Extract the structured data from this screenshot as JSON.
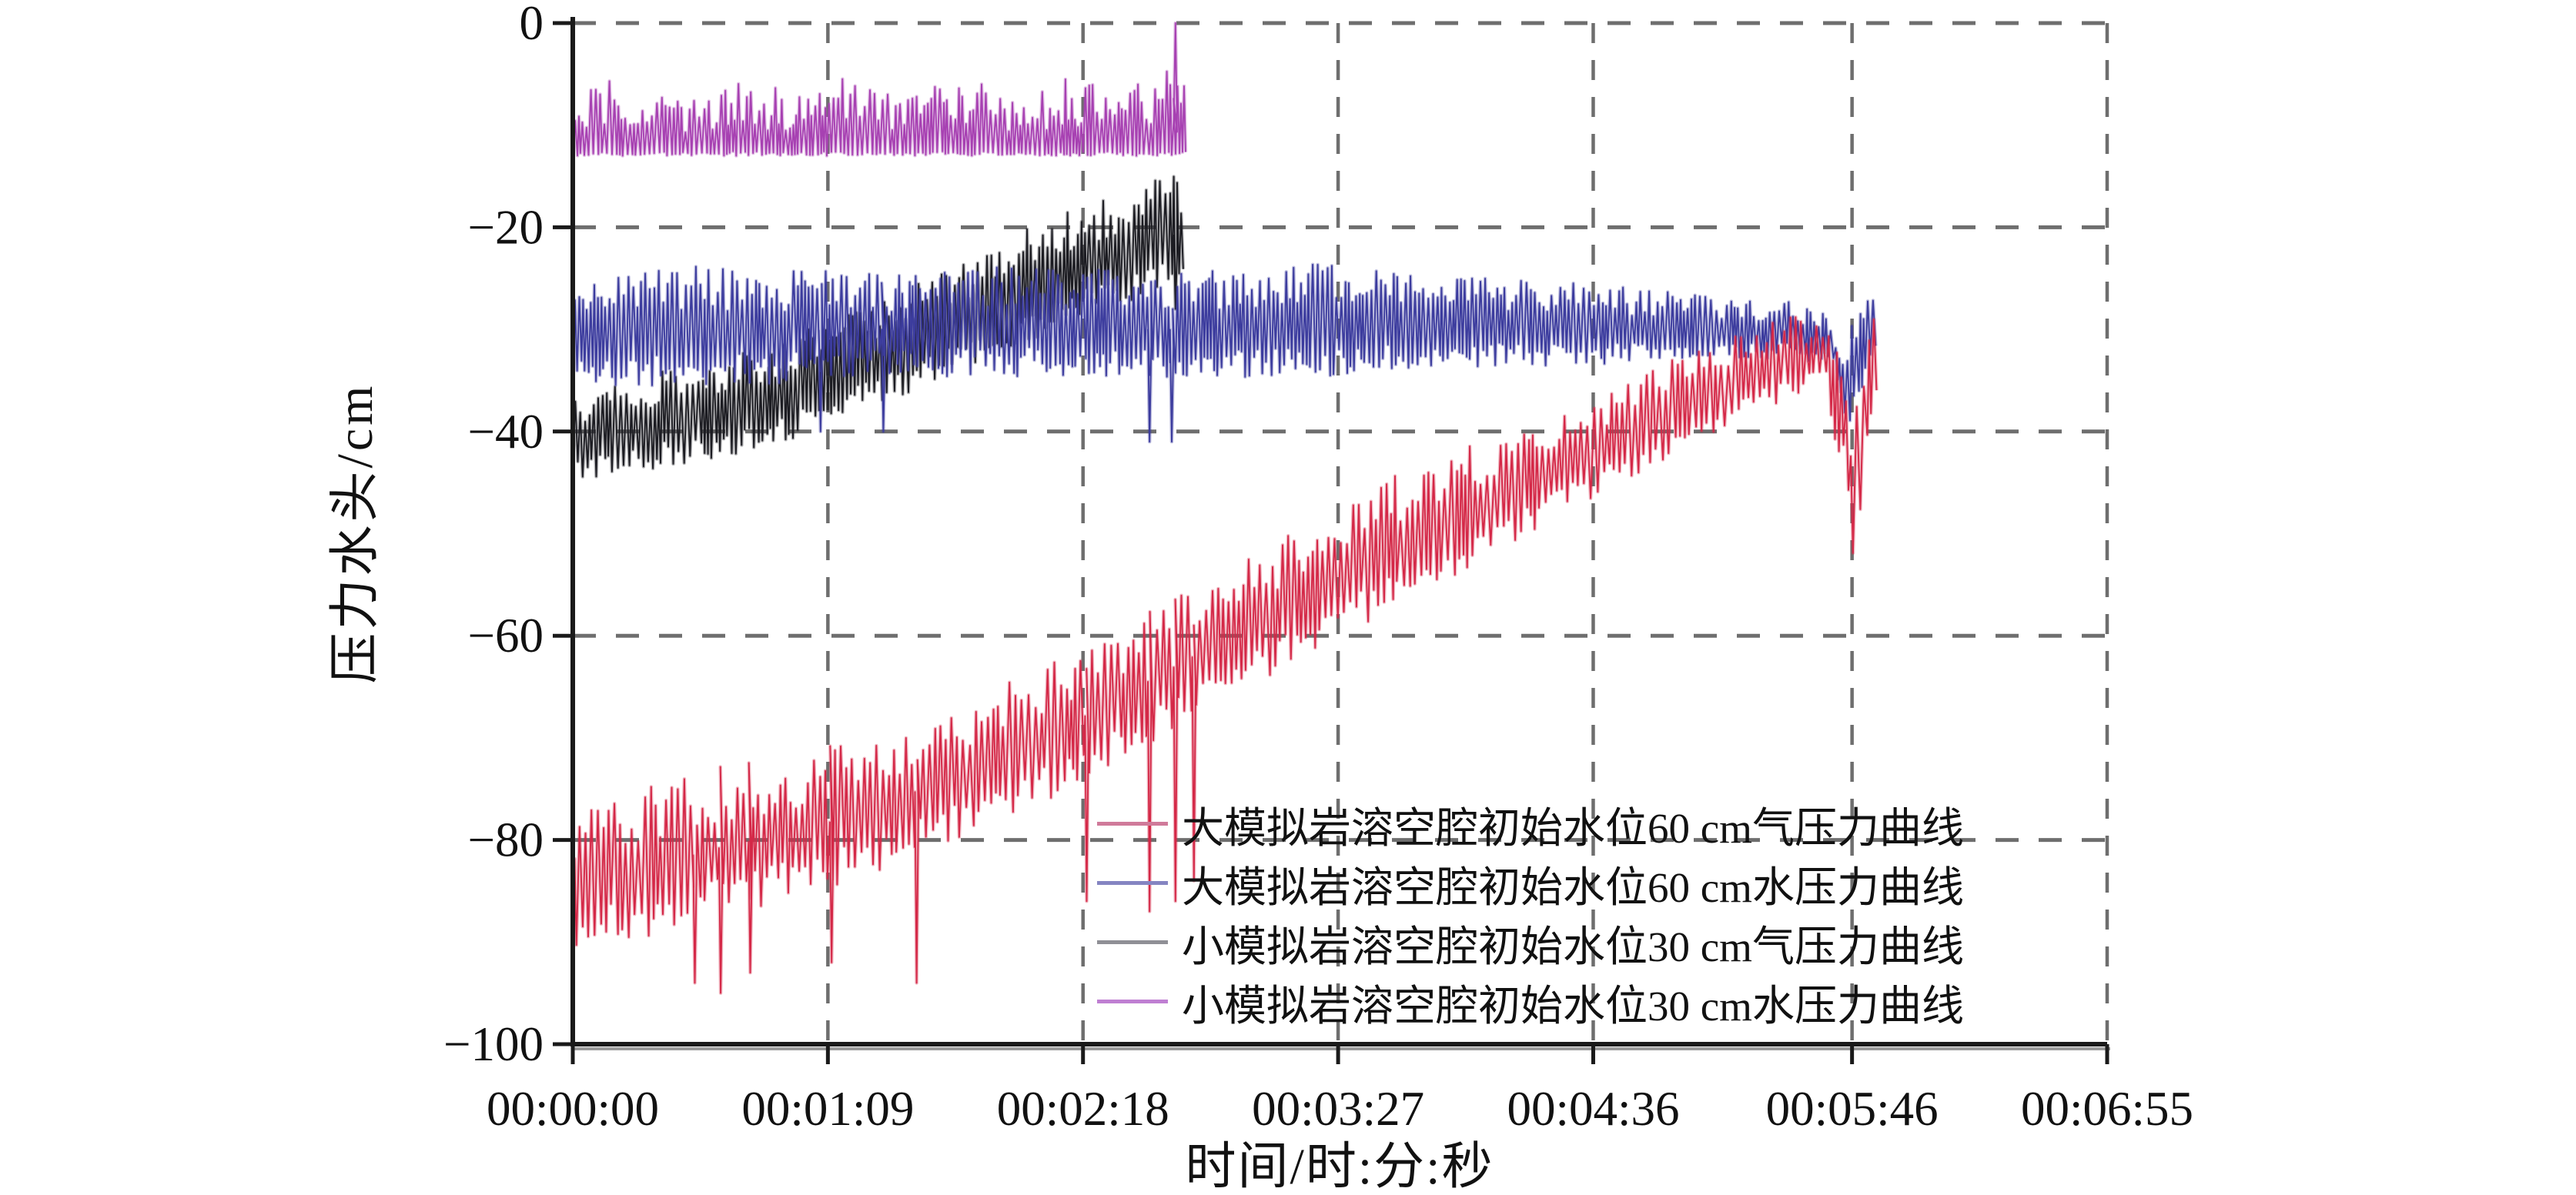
{
  "chart_data": {
    "type": "line",
    "title": "",
    "xlabel": "时间/时:分:秒",
    "ylabel": "压力水头/cm",
    "ylim": [
      -100,
      0
    ],
    "y_ticks": [
      {
        "label": "0",
        "value": 0
      },
      {
        "label": "−20",
        "value": -20
      },
      {
        "label": "−40",
        "value": -40
      },
      {
        "label": "−60",
        "value": -60
      },
      {
        "label": "−80",
        "value": -80
      },
      {
        "label": "−100",
        "value": -100
      }
    ],
    "x_ticks": [
      {
        "label": "00:00:00",
        "t": 0
      },
      {
        "label": "00:01:09",
        "t": 69
      },
      {
        "label": "00:02:18",
        "t": 138
      },
      {
        "label": "00:03:27",
        "t": 207
      },
      {
        "label": "00:04:36",
        "t": 276
      },
      {
        "label": "00:05:46",
        "t": 346
      },
      {
        "label": "00:06:55",
        "t": 415
      }
    ],
    "x_total_seconds": 415,
    "grid": "dashed",
    "grid_color": "#6e6e6e",
    "axis_color": "#1a1a1a",
    "legend_position": "inside-lower-right",
    "series": [
      {
        "name": "大模拟岩溶空腔初始水位60 cm气压力曲线",
        "color": "#d42847",
        "legend_color": "#d07a9a",
        "style": "band",
        "seed": 7,
        "spike_period": 1.5,
        "t_range": [
          0,
          352
        ],
        "envelope": [
          [
            0,
            -91,
            -76
          ],
          [
            20,
            -90,
            -74
          ],
          [
            40,
            -88,
            -72
          ],
          [
            60,
            -86,
            -71
          ],
          [
            80,
            -84,
            -69
          ],
          [
            100,
            -81,
            -66
          ],
          [
            120,
            -78,
            -63
          ],
          [
            140,
            -74,
            -60
          ],
          [
            160,
            -70,
            -56
          ],
          [
            180,
            -66,
            -52
          ],
          [
            200,
            -62,
            -48
          ],
          [
            220,
            -58,
            -44
          ],
          [
            240,
            -54,
            -41
          ],
          [
            260,
            -50,
            -38
          ],
          [
            280,
            -46,
            -35
          ],
          [
            300,
            -42,
            -32
          ],
          [
            315,
            -39,
            -30
          ],
          [
            330,
            -37,
            -28
          ],
          [
            338,
            -36,
            -28
          ],
          [
            343,
            -45,
            -30
          ],
          [
            346,
            -56,
            -40
          ],
          [
            349,
            -44,
            -32
          ],
          [
            352,
            -36,
            -28
          ]
        ],
        "dips": [
          [
            33,
            -94
          ],
          [
            40,
            -95
          ],
          [
            48,
            -93
          ],
          [
            70,
            -92
          ],
          [
            93,
            -94
          ],
          [
            139,
            -86
          ],
          [
            156,
            -87
          ],
          [
            163,
            -86
          ],
          [
            168,
            -84
          ]
        ]
      },
      {
        "name": "大模拟岩溶空腔初始水位60 cm水压力曲线",
        "color": "#3c3c9e",
        "legend_color": "#8585c2",
        "style": "band",
        "seed": 11,
        "spike_period": 1.15,
        "t_range": [
          0,
          352
        ],
        "envelope": [
          [
            0,
            -36,
            -24
          ],
          [
            40,
            -36,
            -23
          ],
          [
            80,
            -35,
            -24
          ],
          [
            120,
            -35,
            -23
          ],
          [
            160,
            -35,
            -24
          ],
          [
            200,
            -35,
            -23
          ],
          [
            240,
            -34,
            -24
          ],
          [
            270,
            -34,
            -25
          ],
          [
            300,
            -33,
            -26
          ],
          [
            330,
            -33,
            -27
          ],
          [
            340,
            -34,
            -28
          ],
          [
            344,
            -41,
            -31
          ],
          [
            347,
            -37,
            -27
          ],
          [
            352,
            -34,
            -24
          ]
        ],
        "dips": [
          [
            67,
            -40
          ],
          [
            84,
            -40
          ],
          [
            156,
            -41
          ],
          [
            162,
            -41
          ]
        ]
      },
      {
        "name": "小模拟岩溶空腔初始水位30 cm气压力曲线",
        "color": "#1c1c22",
        "legend_color": "#8f8f96",
        "style": "band",
        "seed": 5,
        "spike_period": 1.2,
        "t_range": [
          0,
          165
        ],
        "envelope": [
          [
            0,
            -45,
            -36
          ],
          [
            20,
            -44,
            -34
          ],
          [
            40,
            -43,
            -32
          ],
          [
            60,
            -41,
            -30
          ],
          [
            80,
            -38,
            -27
          ],
          [
            100,
            -35,
            -24
          ],
          [
            120,
            -32,
            -20
          ],
          [
            140,
            -29,
            -17
          ],
          [
            155,
            -27,
            -15
          ],
          [
            165,
            -26,
            -14
          ]
        ],
        "dips": [
          [
            163,
            -28
          ]
        ]
      },
      {
        "name": "小模拟岩溶空腔初始水位30 cm水压力曲线",
        "color": "#a741b2",
        "legend_color": "#bf7fd2",
        "style": "spike-up",
        "seed": 3,
        "spike_period": 1.1,
        "t_range": [
          0,
          165
        ],
        "envelope": [
          [
            0,
            -13,
            -8
          ],
          [
            8,
            -13,
            -4
          ],
          [
            15,
            -13,
            -9
          ],
          [
            25,
            -13,
            -6
          ],
          [
            35,
            -13,
            -8
          ],
          [
            45,
            -13,
            -5
          ],
          [
            60,
            -13,
            -7
          ],
          [
            75,
            -13,
            -5
          ],
          [
            90,
            -13,
            -7
          ],
          [
            105,
            -13,
            -5
          ],
          [
            120,
            -13,
            -7
          ],
          [
            135,
            -13,
            -5
          ],
          [
            150,
            -13,
            -6
          ],
          [
            160,
            -13,
            -4
          ],
          [
            165,
            -13,
            -6
          ]
        ],
        "dips": [
          [
            163,
            0
          ]
        ]
      }
    ]
  },
  "plot_geometry_note": "pressure head vs time, dashed grid, legend of four curves inside plot"
}
